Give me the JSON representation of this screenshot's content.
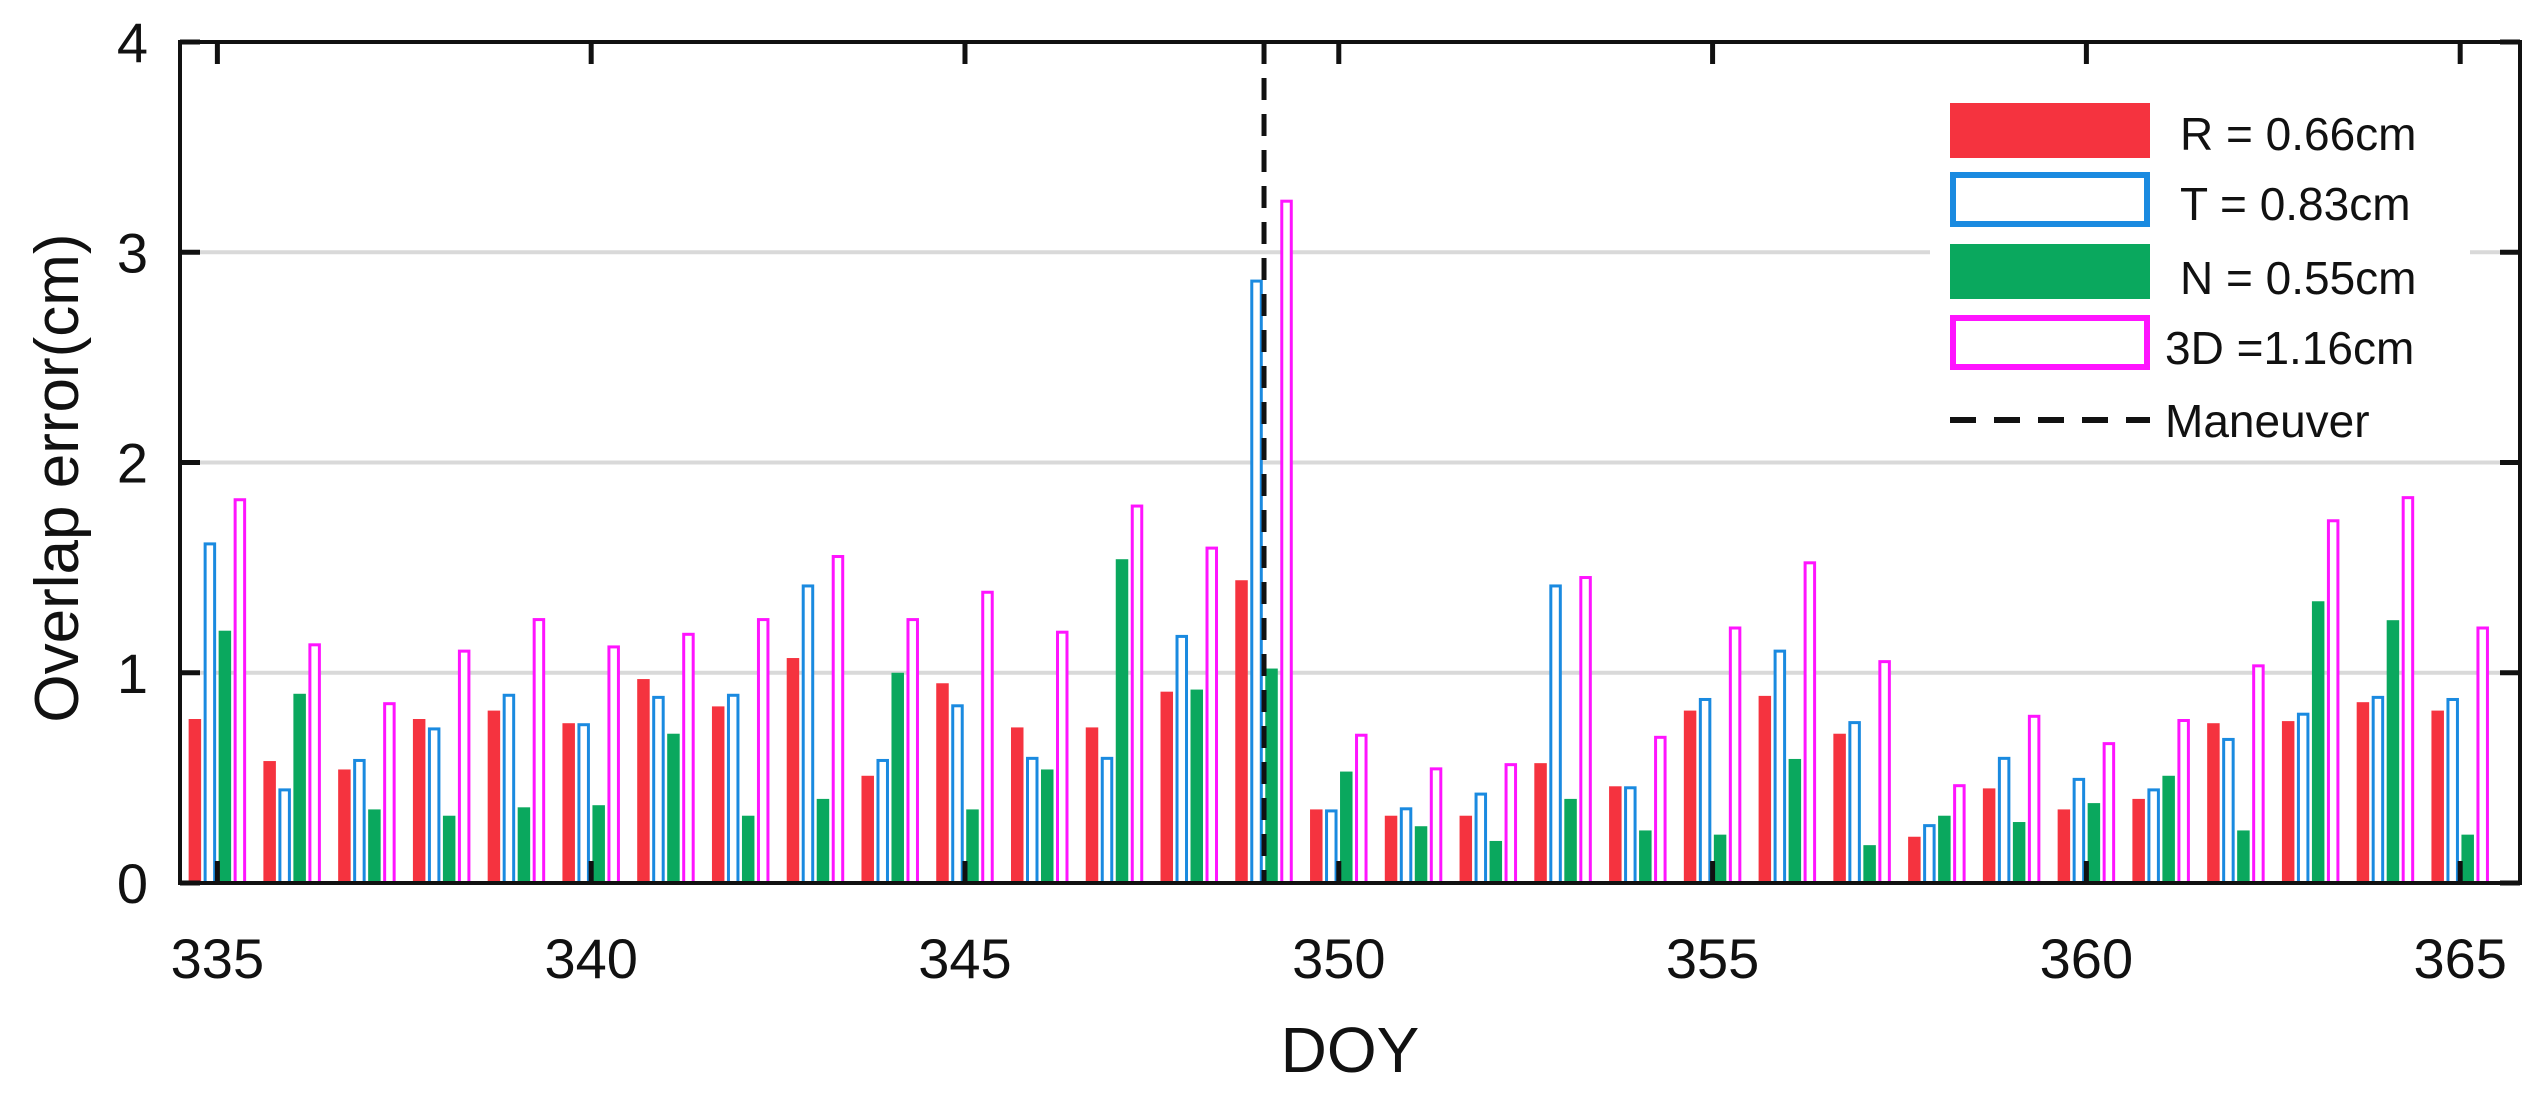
{
  "chart_data": {
    "type": "bar",
    "xlabel": "DOY",
    "ylabel": "Overlap error(cm)",
    "x": [
      335,
      336,
      337,
      338,
      339,
      340,
      341,
      342,
      343,
      344,
      345,
      346,
      347,
      348,
      349,
      350,
      351,
      352,
      353,
      354,
      355,
      356,
      357,
      358,
      359,
      360,
      361,
      362,
      363,
      364,
      365
    ],
    "xlim": [
      334.5,
      365.8
    ],
    "ylim": [
      0,
      4
    ],
    "xticks": [
      335,
      340,
      345,
      350,
      355,
      360,
      365
    ],
    "yticks": [
      0,
      1,
      2,
      3,
      4
    ],
    "grid": "horizontal",
    "legend_position": "top-right",
    "series": [
      {
        "name": "R = 0.66cm",
        "style": "filled",
        "color": "#f5333f",
        "values": [
          0.78,
          0.58,
          0.54,
          0.78,
          0.82,
          0.76,
          0.97,
          0.84,
          1.07,
          0.51,
          0.95,
          0.74,
          0.74,
          0.91,
          1.44,
          0.35,
          0.32,
          0.32,
          0.57,
          0.46,
          0.82,
          0.89,
          0.71,
          0.22,
          0.45,
          0.35,
          0.4,
          0.76,
          0.77,
          0.86,
          0.82
        ]
      },
      {
        "name": "T = 0.83cm",
        "style": "outline",
        "color": "#1a8ae0",
        "values": [
          1.62,
          0.45,
          0.59,
          0.74,
          0.9,
          0.76,
          0.89,
          0.9,
          1.42,
          0.59,
          0.85,
          0.6,
          0.6,
          1.18,
          2.87,
          0.35,
          0.36,
          0.43,
          1.42,
          0.46,
          0.88,
          1.11,
          0.77,
          0.28,
          0.6,
          0.5,
          0.45,
          0.69,
          0.81,
          0.89,
          0.88
        ]
      },
      {
        "name": "N = 0.55cm",
        "style": "filled",
        "color": "#0aa85e",
        "values": [
          1.2,
          0.9,
          0.35,
          0.32,
          0.36,
          0.37,
          0.71,
          0.32,
          0.4,
          1.0,
          0.35,
          0.54,
          1.54,
          0.92,
          1.02,
          0.53,
          0.27,
          0.2,
          0.4,
          0.25,
          0.23,
          0.59,
          0.18,
          0.32,
          0.29,
          0.38,
          0.51,
          0.25,
          1.34,
          1.25,
          0.23
        ]
      },
      {
        "name": "3D =1.16cm",
        "style": "outline",
        "color": "#ff14ff",
        "values": [
          1.83,
          1.14,
          0.86,
          1.11,
          1.26,
          1.13,
          1.19,
          1.26,
          1.56,
          1.26,
          1.39,
          1.2,
          1.8,
          1.6,
          3.25,
          0.71,
          0.55,
          0.57,
          1.46,
          0.7,
          1.22,
          1.53,
          1.06,
          0.47,
          0.8,
          0.67,
          0.78,
          1.04,
          1.73,
          1.84,
          1.22
        ]
      }
    ],
    "vline": {
      "name": "Maneuver",
      "x": 349,
      "style": "dashed",
      "color": "#111111"
    }
  }
}
